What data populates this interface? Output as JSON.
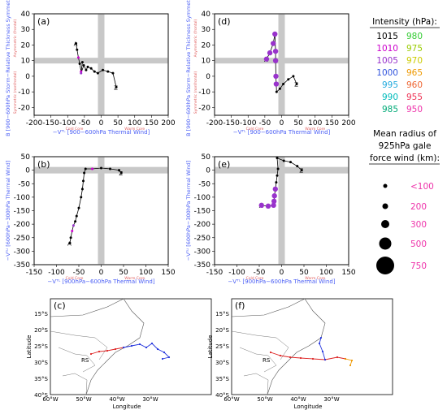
{
  "figure": {
    "panels": {
      "a": "(a)",
      "b": "(b)",
      "c": "(c)",
      "d": "(d)",
      "e": "(e)",
      "f": "(f)"
    },
    "labels": {
      "b_axis": "B [900−600hPa Storm−Relative Thickness Symmetry]",
      "vtl_axis": "−Vᵀᴸ [900−600hPa Thermal Wind]",
      "vtu_axis": "−Vᵀᵁ [600hPa−300hPa Thermal Wind]",
      "cold_core": "Cold Core",
      "warm_core": "Warm Core",
      "asym": "Asymmetric (frontal)",
      "sym": "Symmetric (nonfrontal)",
      "lat_axis": "Latitude",
      "lon_axis": "Longitude",
      "rs": "RS"
    },
    "legend": {
      "intensity_title": "Intensity (hPa):",
      "intensity_left": [
        {
          "label": "1015",
          "color": "#000000"
        },
        {
          "label": "1010",
          "color": "#cc00cc"
        },
        {
          "label": "1005",
          "color": "#9933cc"
        },
        {
          "label": "1000",
          "color": "#3355dd"
        },
        {
          "label": "995",
          "color": "#22aadd"
        },
        {
          "label": "990",
          "color": "#00bbbb"
        },
        {
          "label": "985",
          "color": "#00aa77"
        }
      ],
      "intensity_right": [
        {
          "label": "980",
          "color": "#33cc33"
        },
        {
          "label": "975",
          "color": "#99cc00"
        },
        {
          "label": "970",
          "color": "#cccc00"
        },
        {
          "label": "965",
          "color": "#ee9900"
        },
        {
          "label": "960",
          "color": "#ee6633"
        },
        {
          "label": "955",
          "color": "#ee3355"
        },
        {
          "label": "950",
          "color": "#ee33aa"
        }
      ],
      "radius_title_1": "Mean radius of",
      "radius_title_2": "925hPa gale",
      "radius_title_3": "force wind (km):",
      "radius_items": [
        "<100",
        "200",
        "300",
        "500",
        "750"
      ],
      "radius_color": "#ee33aa"
    }
  },
  "chart_data": [
    {
      "panel": "a",
      "type": "scatter",
      "xlabel": "−Vᵀᴸ [900−600hPa Thermal Wind]",
      "ylabel": "B [900−600hPa Storm−Relative Thickness Symmetry]",
      "xlim": [
        -200,
        200
      ],
      "ylim": [
        -25,
        40
      ],
      "xticks": [
        -200,
        -150,
        -100,
        -50,
        0,
        50,
        100,
        150,
        200
      ],
      "yticks": [
        -20,
        -10,
        0,
        10,
        20,
        30,
        40
      ],
      "points": [
        {
          "x": -75,
          "y": 21,
          "c": "#000000"
        },
        {
          "x": -72,
          "y": 17,
          "c": "#000000"
        },
        {
          "x": -68,
          "y": 12,
          "c": "#cc00cc"
        },
        {
          "x": -64,
          "y": 8,
          "c": "#000000"
        },
        {
          "x": -60,
          "y": 3,
          "c": "#cc00cc"
        },
        {
          "x": -56,
          "y": 9,
          "c": "#000000"
        },
        {
          "x": -60,
          "y": 2,
          "c": "#9933cc"
        },
        {
          "x": -52,
          "y": 7,
          "c": "#000000"
        },
        {
          "x": -45,
          "y": 4,
          "c": "#000000"
        },
        {
          "x": -40,
          "y": 6,
          "c": "#000000"
        },
        {
          "x": -30,
          "y": 5,
          "c": "#000000"
        },
        {
          "x": -20,
          "y": 3,
          "c": "#000000"
        },
        {
          "x": -10,
          "y": 2,
          "c": "#000000"
        },
        {
          "x": 5,
          "y": 4,
          "c": "#000000"
        },
        {
          "x": 20,
          "y": 3,
          "c": "#000000"
        },
        {
          "x": 35,
          "y": 2,
          "c": "#000000"
        },
        {
          "x": 45,
          "y": -7,
          "c": "#000000"
        }
      ]
    },
    {
      "panel": "b",
      "type": "scatter",
      "xlabel": "−Vᵀᴸ [900hPa−600hPa Thermal Wind]",
      "ylabel": "−Vᵀᵁ [600hPa−300hPa Thermal Wind]",
      "xlim": [
        -150,
        150
      ],
      "ylim": [
        -350,
        50
      ],
      "xticks": [
        -150,
        -100,
        -50,
        0,
        50,
        100,
        150
      ],
      "yticks": [
        -350,
        -300,
        -250,
        -200,
        -150,
        -100,
        -50,
        0,
        50
      ],
      "points": [
        {
          "x": -70,
          "y": -270,
          "c": "#000000"
        },
        {
          "x": -68,
          "y": -250,
          "c": "#000000"
        },
        {
          "x": -65,
          "y": -225,
          "c": "#cc00cc"
        },
        {
          "x": -62,
          "y": -205,
          "c": "#9933cc"
        },
        {
          "x": -58,
          "y": -190,
          "c": "#000000"
        },
        {
          "x": -55,
          "y": -170,
          "c": "#000000"
        },
        {
          "x": -50,
          "y": -140,
          "c": "#000000"
        },
        {
          "x": -45,
          "y": -100,
          "c": "#000000"
        },
        {
          "x": -42,
          "y": -70,
          "c": "#000000"
        },
        {
          "x": -40,
          "y": -40,
          "c": "#000000"
        },
        {
          "x": -38,
          "y": -10,
          "c": "#000000"
        },
        {
          "x": -35,
          "y": 5,
          "c": "#000000"
        },
        {
          "x": -20,
          "y": 5,
          "c": "#cc00cc"
        },
        {
          "x": 0,
          "y": 8,
          "c": "#000000"
        },
        {
          "x": 20,
          "y": 5,
          "c": "#000000"
        },
        {
          "x": 40,
          "y": 0,
          "c": "#000000"
        },
        {
          "x": 45,
          "y": -10,
          "c": "#000000"
        }
      ]
    },
    {
      "panel": "d",
      "type": "scatter",
      "xlabel": "−Vᵀᴸ [900−600hPa Thermal Wind]",
      "ylabel": "B [900−600hPa Storm−Relative Thickness Symmetry]",
      "xlim": [
        -200,
        200
      ],
      "ylim": [
        -25,
        40
      ],
      "xticks": [
        -200,
        -150,
        -100,
        -50,
        0,
        50,
        100,
        150,
        200
      ],
      "yticks": [
        -20,
        -10,
        0,
        10,
        20,
        30,
        40
      ],
      "points": [
        {
          "x": -45,
          "y": 11,
          "c": "#9933cc"
        },
        {
          "x": -35,
          "y": 15,
          "c": "#9933cc"
        },
        {
          "x": -25,
          "y": 21,
          "c": "#9933cc"
        },
        {
          "x": -20,
          "y": 27,
          "c": "#9933cc"
        },
        {
          "x": -18,
          "y": 16,
          "c": "#9933cc"
        },
        {
          "x": -18,
          "y": 10,
          "c": "#9933cc"
        },
        {
          "x": -17,
          "y": 0,
          "c": "#9933cc"
        },
        {
          "x": -16,
          "y": -5,
          "c": "#9933cc"
        },
        {
          "x": -15,
          "y": -10,
          "c": "#000000"
        },
        {
          "x": -5,
          "y": -8,
          "c": "#000000"
        },
        {
          "x": 5,
          "y": -5,
          "c": "#000000"
        },
        {
          "x": 20,
          "y": -2,
          "c": "#000000"
        },
        {
          "x": 35,
          "y": 0,
          "c": "#000000"
        },
        {
          "x": 45,
          "y": -5,
          "c": "#000000"
        }
      ]
    },
    {
      "panel": "e",
      "type": "scatter",
      "xlabel": "−Vᵀᴸ [900hPa−600hPa Thermal Wind]",
      "ylabel": "−Vᵀᵁ [600hPa−300hPa Thermal Wind]",
      "xlim": [
        -150,
        150
      ],
      "ylim": [
        -350,
        50
      ],
      "xticks": [
        -150,
        -100,
        -50,
        0,
        50,
        100,
        150
      ],
      "yticks": [
        -350,
        -300,
        -250,
        -200,
        -150,
        -100,
        -50,
        0,
        50
      ],
      "points": [
        {
          "x": -45,
          "y": -130,
          "c": "#9933cc"
        },
        {
          "x": -30,
          "y": -133,
          "c": "#9933cc"
        },
        {
          "x": -18,
          "y": -130,
          "c": "#9933cc"
        },
        {
          "x": -17,
          "y": -115,
          "c": "#9933cc"
        },
        {
          "x": -16,
          "y": -95,
          "c": "#9933cc"
        },
        {
          "x": -14,
          "y": -70,
          "c": "#9933cc"
        },
        {
          "x": -12,
          "y": -45,
          "c": "#000000"
        },
        {
          "x": -10,
          "y": -20,
          "c": "#000000"
        },
        {
          "x": -8,
          "y": 5,
          "c": "#000000"
        },
        {
          "x": -10,
          "y": 45,
          "c": "#000000"
        },
        {
          "x": 5,
          "y": 35,
          "c": "#000000"
        },
        {
          "x": 20,
          "y": 30,
          "c": "#000000"
        },
        {
          "x": 35,
          "y": 15,
          "c": "#000000"
        },
        {
          "x": 45,
          "y": 0,
          "c": "#000000"
        }
      ]
    },
    {
      "panel": "c",
      "type": "map",
      "xlabel": "Longitude",
      "ylabel": "Latitude",
      "xticks": [
        "60°W",
        "50°W",
        "40°W",
        "30°W"
      ],
      "yticks": [
        "15°S",
        "20°S",
        "25°S",
        "30°S",
        "35°S",
        "40°S"
      ]
    },
    {
      "panel": "f",
      "type": "map",
      "xlabel": "Longitude",
      "ylabel": "Latitude",
      "xticks": [
        "60°W",
        "50°W",
        "40°W",
        "30°W"
      ],
      "yticks": [
        "15°S",
        "20°S",
        "25°S",
        "30°S",
        "35°S",
        "40°S"
      ]
    }
  ]
}
